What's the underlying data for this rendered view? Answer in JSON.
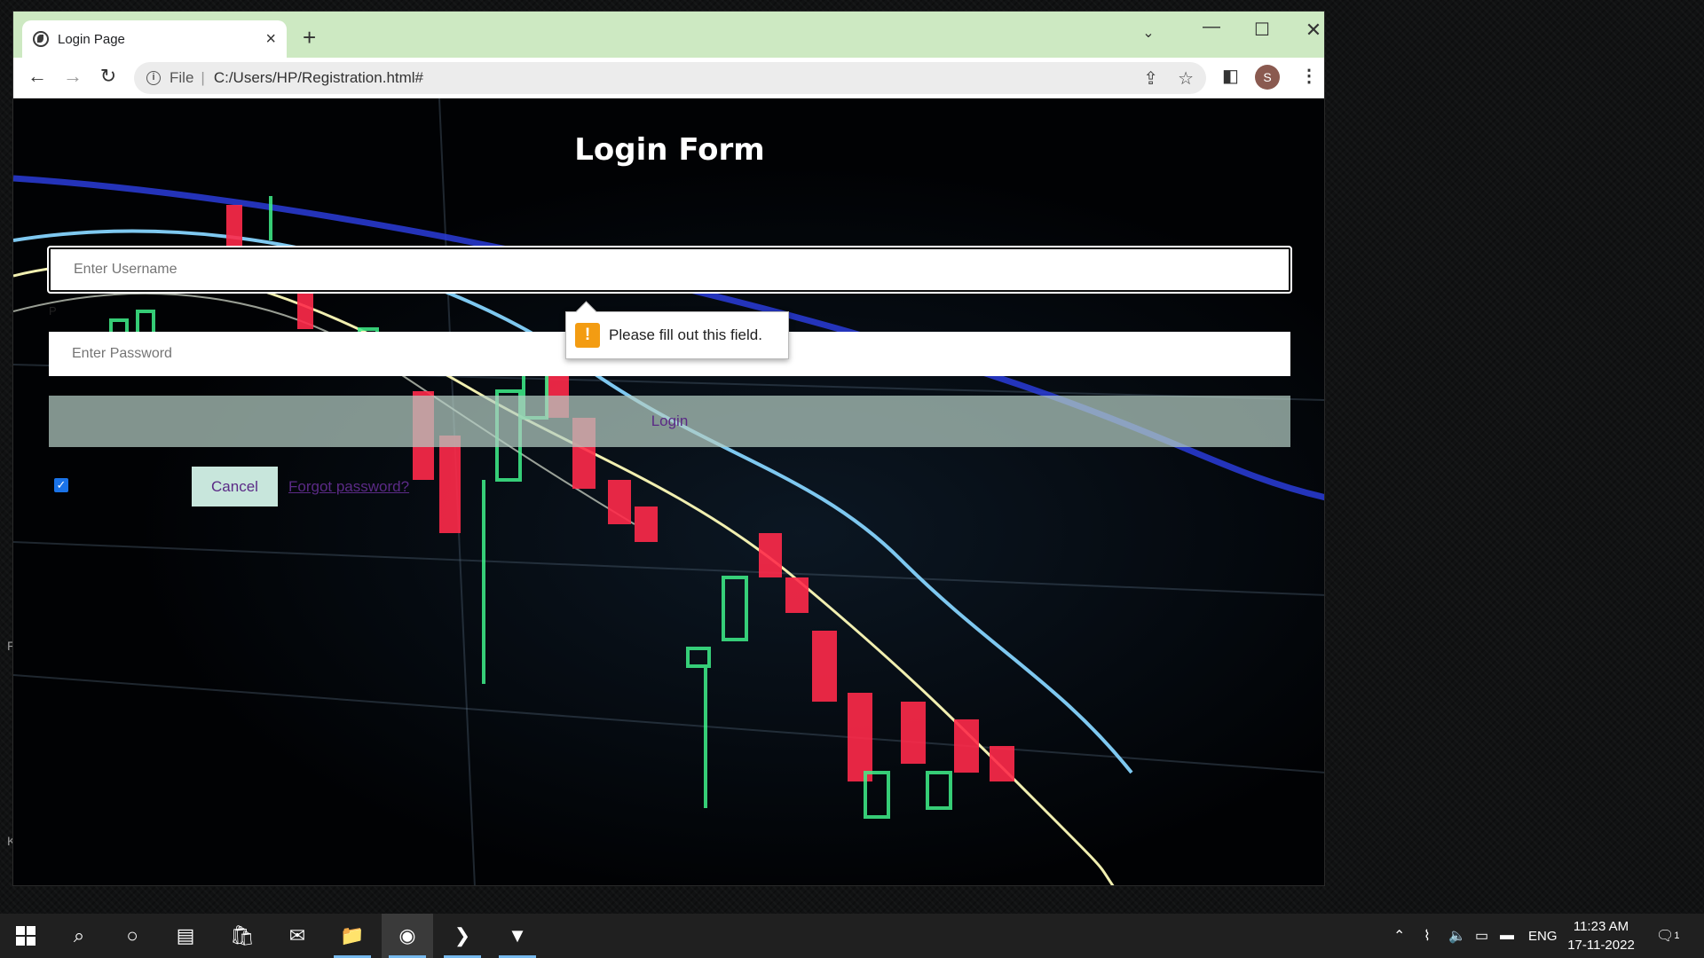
{
  "browser": {
    "tab_title": "Login Page",
    "tab_close": "×",
    "new_tab": "+",
    "address_scheme": "File",
    "address_separator": "|",
    "address_url": "C:/Users/HP/Registration.html#",
    "avatar_letter": "S"
  },
  "page": {
    "title": "Login Form",
    "username_placeholder": "Enter Username",
    "password_placeholder": "Enter Password",
    "login_label": "Login",
    "remember_checked": true,
    "cancel_label": "Cancel",
    "forgot_label": "Forgot password?",
    "stray_text": "P"
  },
  "validation": {
    "icon": "!",
    "message": "Please fill out this field."
  },
  "desktop": {
    "edge_text_1": "F",
    "edge_text_2": "K"
  },
  "taskbar": {
    "language": "ENG",
    "time": "11:23 AM",
    "date": "17-11-2022",
    "notification_count": "1"
  },
  "colors": {
    "tabbar_bg": "#cde9c2",
    "login_button_bg": "#b4cdc3",
    "link_color": "#5b2a86",
    "warning": "#f39c12"
  }
}
